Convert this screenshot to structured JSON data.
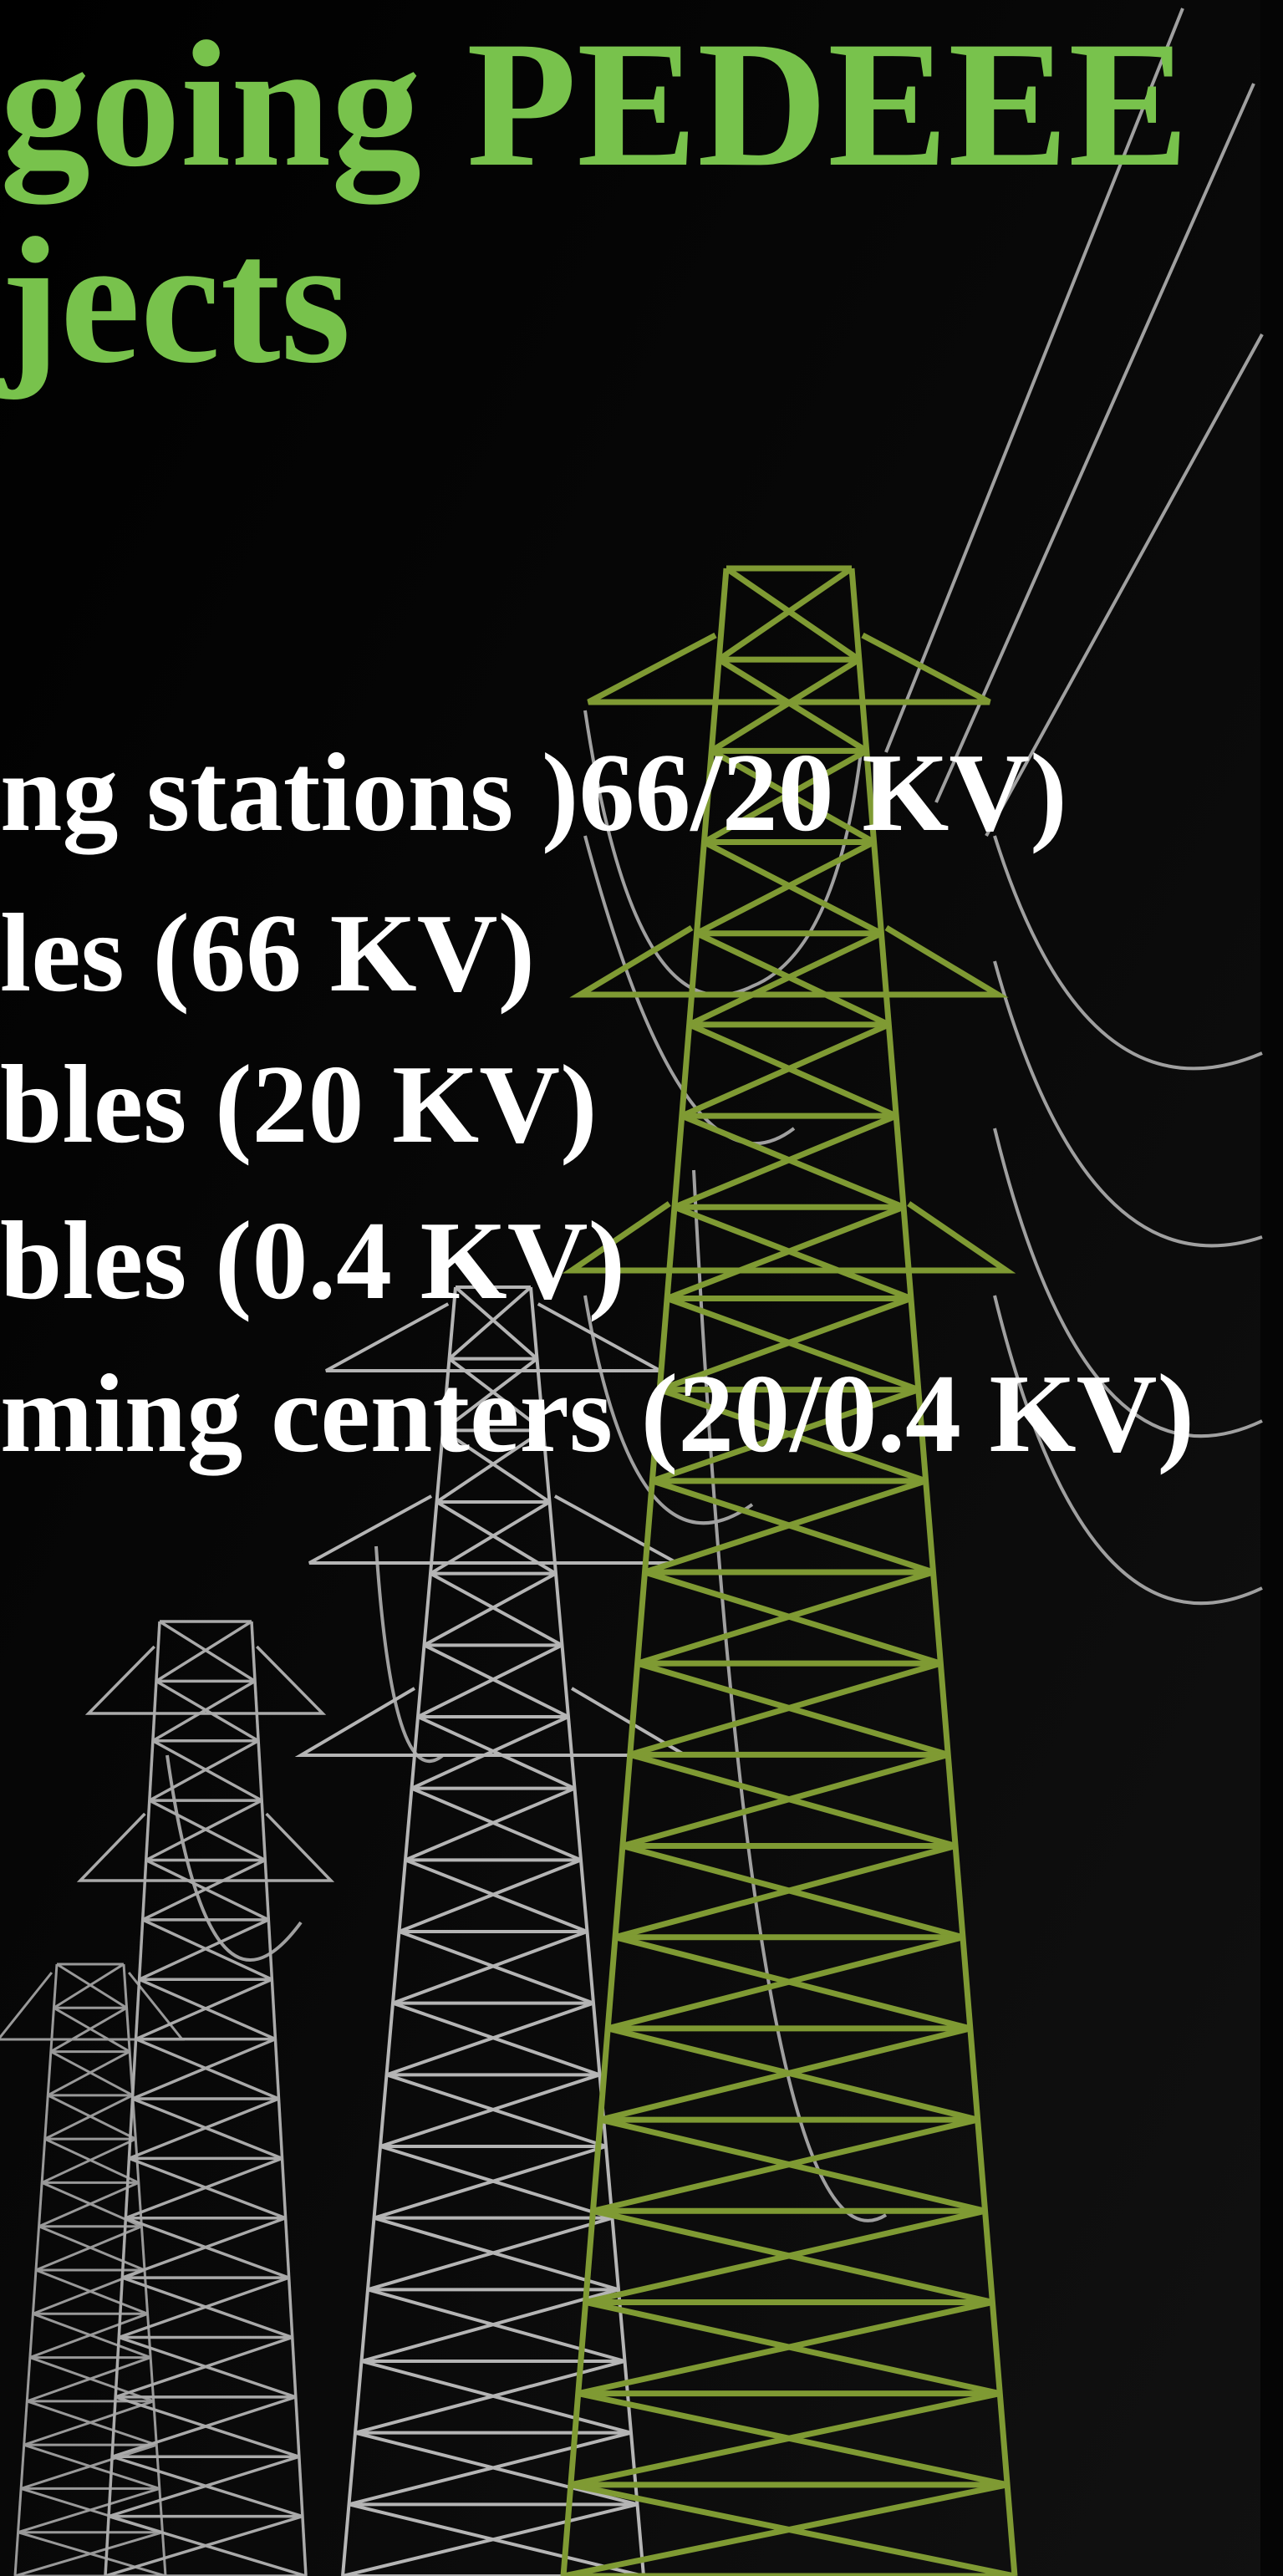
{
  "title": {
    "lines": [
      "going PEDEEE",
      "jects"
    ]
  },
  "list": {
    "items": [
      "ng stations )66/20 KV)",
      "les (66 KV)",
      "bles (20 KV)",
      "bles (0.4 KV)",
      "ming centers (20/0.4 KV)"
    ]
  }
}
